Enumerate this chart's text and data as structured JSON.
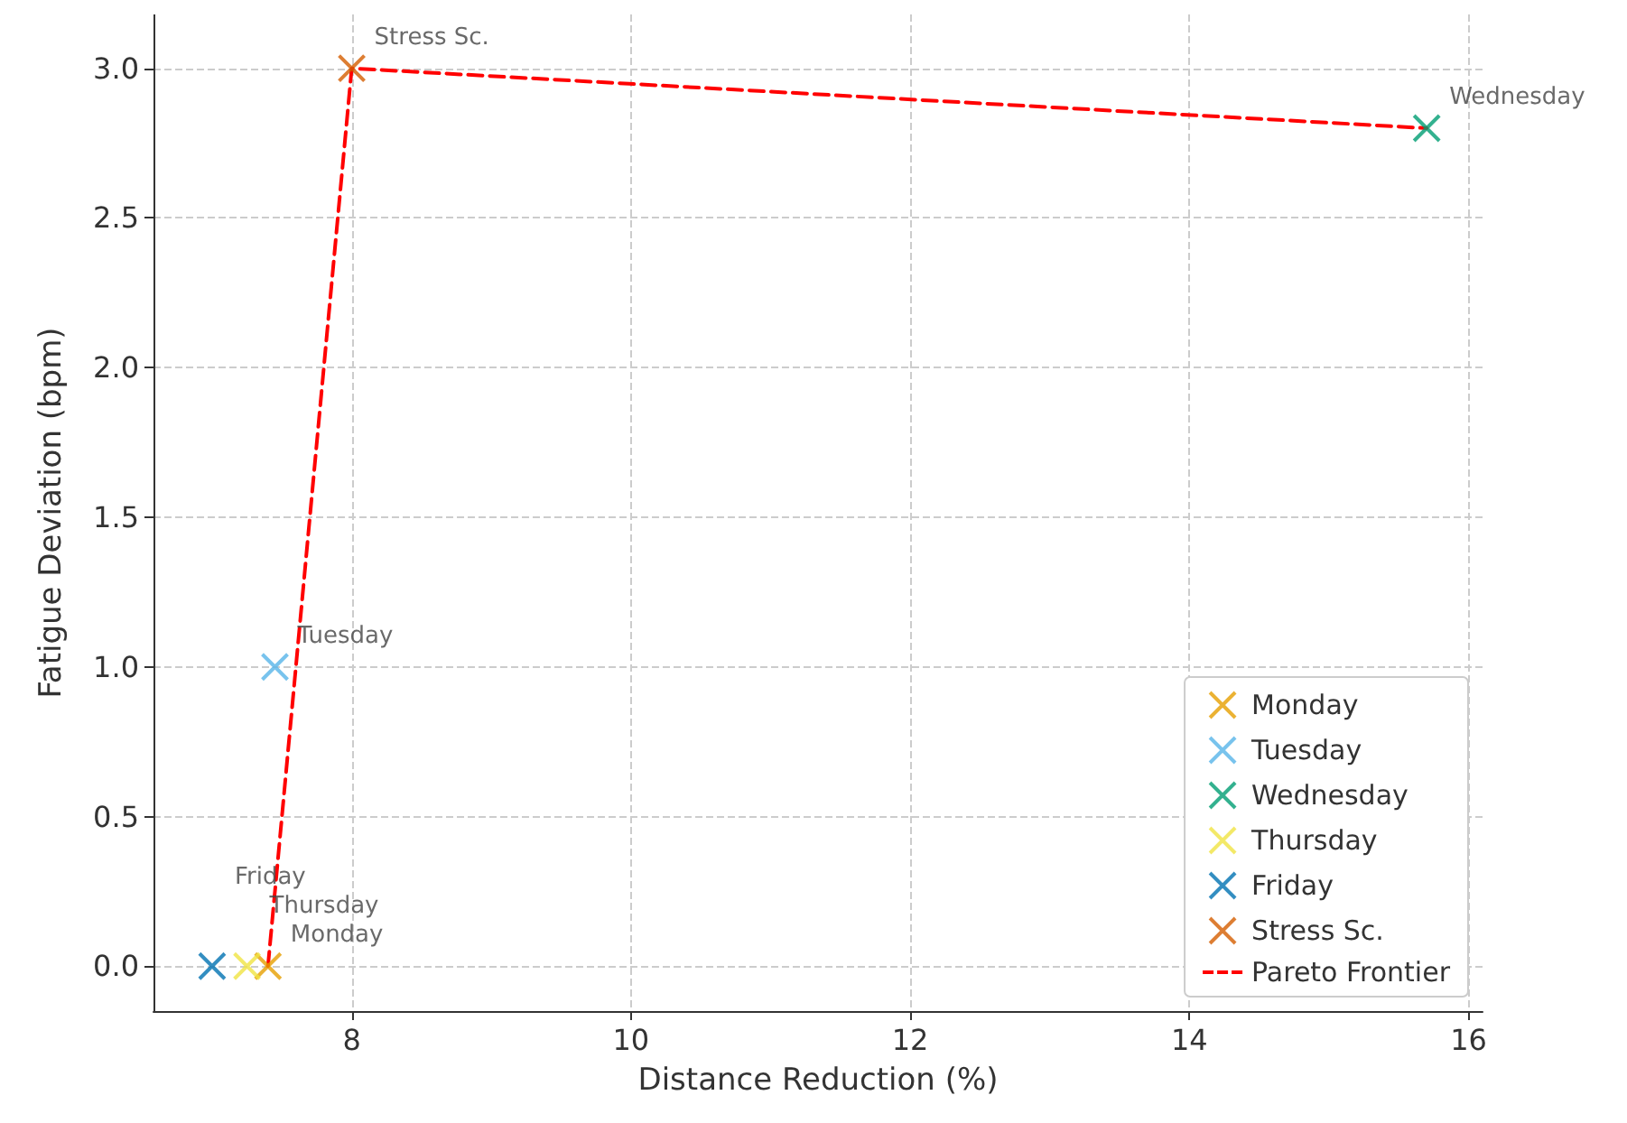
{
  "chart_data": {
    "type": "scatter",
    "xlabel": "Distance Reduction (%)",
    "ylabel": "Fatigue Deviation (bpm)",
    "series": [
      {
        "name": "Monday",
        "color": "#e69f00",
        "x": [
          7.4
        ],
        "values": [
          0
        ]
      },
      {
        "name": "Tuesday",
        "color": "#56b4e9",
        "x": [
          7.45
        ],
        "values": [
          1.0
        ]
      },
      {
        "name": "Wednesday",
        "color": "#009e73",
        "x": [
          15.7
        ],
        "values": [
          2.8
        ]
      },
      {
        "name": "Thursday",
        "color": "#f0e442",
        "x": [
          7.25
        ],
        "values": [
          0
        ]
      },
      {
        "name": "Friday",
        "color": "#0072b2",
        "x": [
          7.0
        ],
        "values": [
          0
        ]
      },
      {
        "name": "Stress Sc.",
        "color": "#d55e00",
        "x": [
          8.0
        ],
        "values": [
          3.0
        ]
      },
      {
        "name": "Pareto Frontier",
        "type": "line",
        "color": "#ff0000",
        "line_style": "dashed",
        "marker": "none",
        "x": [
          7.4,
          8.0,
          15.7
        ],
        "values": [
          0,
          3.0,
          2.8
        ]
      }
    ],
    "marker": "cross",
    "xlim": [
      6.58,
      16.1
    ],
    "ylim": [
      -0.15,
      3.18
    ],
    "xticks": [
      8,
      10,
      12,
      14,
      16
    ],
    "yticks": [
      {
        "value": 0,
        "label": "0.0"
      },
      0.5,
      {
        "value": 1,
        "label": "1.0"
      },
      1.5,
      {
        "value": 2,
        "label": "2.0"
      },
      2.5,
      {
        "value": 3,
        "label": "3.0"
      }
    ],
    "grid": true,
    "legend": "bottom right"
  }
}
